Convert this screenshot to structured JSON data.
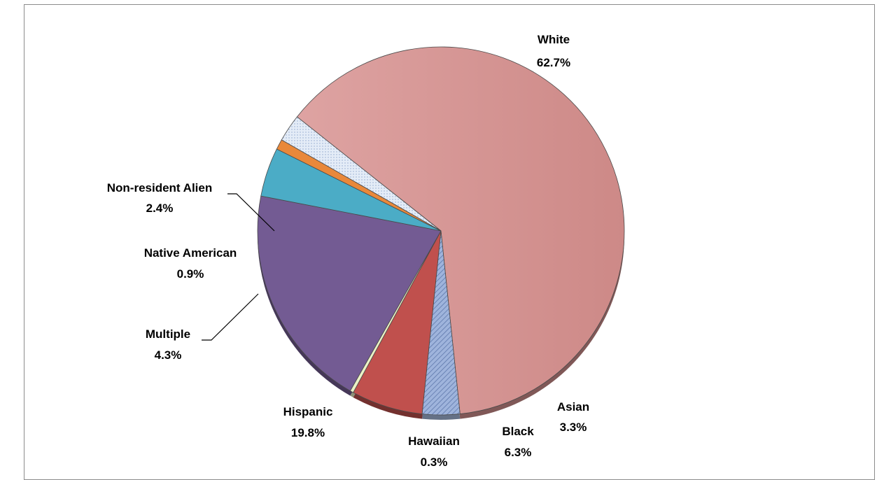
{
  "chart_data": {
    "type": "pie",
    "title": "",
    "slices": [
      {
        "label": "White",
        "percent_text": "62.7%",
        "value": 62.7,
        "color": "#d59291",
        "pattern": "gradient"
      },
      {
        "label": "Asian",
        "percent_text": "3.3%",
        "value": 3.3,
        "color": "#a8bce0",
        "pattern": "hatch"
      },
      {
        "label": "Black",
        "percent_text": "6.3%",
        "value": 6.3,
        "color": "#c0504d",
        "pattern": "solid"
      },
      {
        "label": "Hawaiian",
        "percent_text": "0.3%",
        "value": 0.3,
        "color": "#ebf1c6",
        "pattern": "solid"
      },
      {
        "label": "Hispanic",
        "percent_text": "19.8%",
        "value": 19.8,
        "color": "#735b93",
        "pattern": "solid"
      },
      {
        "label": "Multiple",
        "percent_text": "4.3%",
        "value": 4.3,
        "color": "#4bacc6",
        "pattern": "solid"
      },
      {
        "label": "Native American",
        "percent_text": "0.9%",
        "value": 0.9,
        "color": "#e9883a",
        "pattern": "solid"
      },
      {
        "label": "Non-resident Alien",
        "percent_text": "2.4%",
        "value": 2.4,
        "color": "#dde7f5",
        "pattern": "dots"
      }
    ],
    "legend": "none",
    "data_labels": "outside, category name and percentage"
  }
}
